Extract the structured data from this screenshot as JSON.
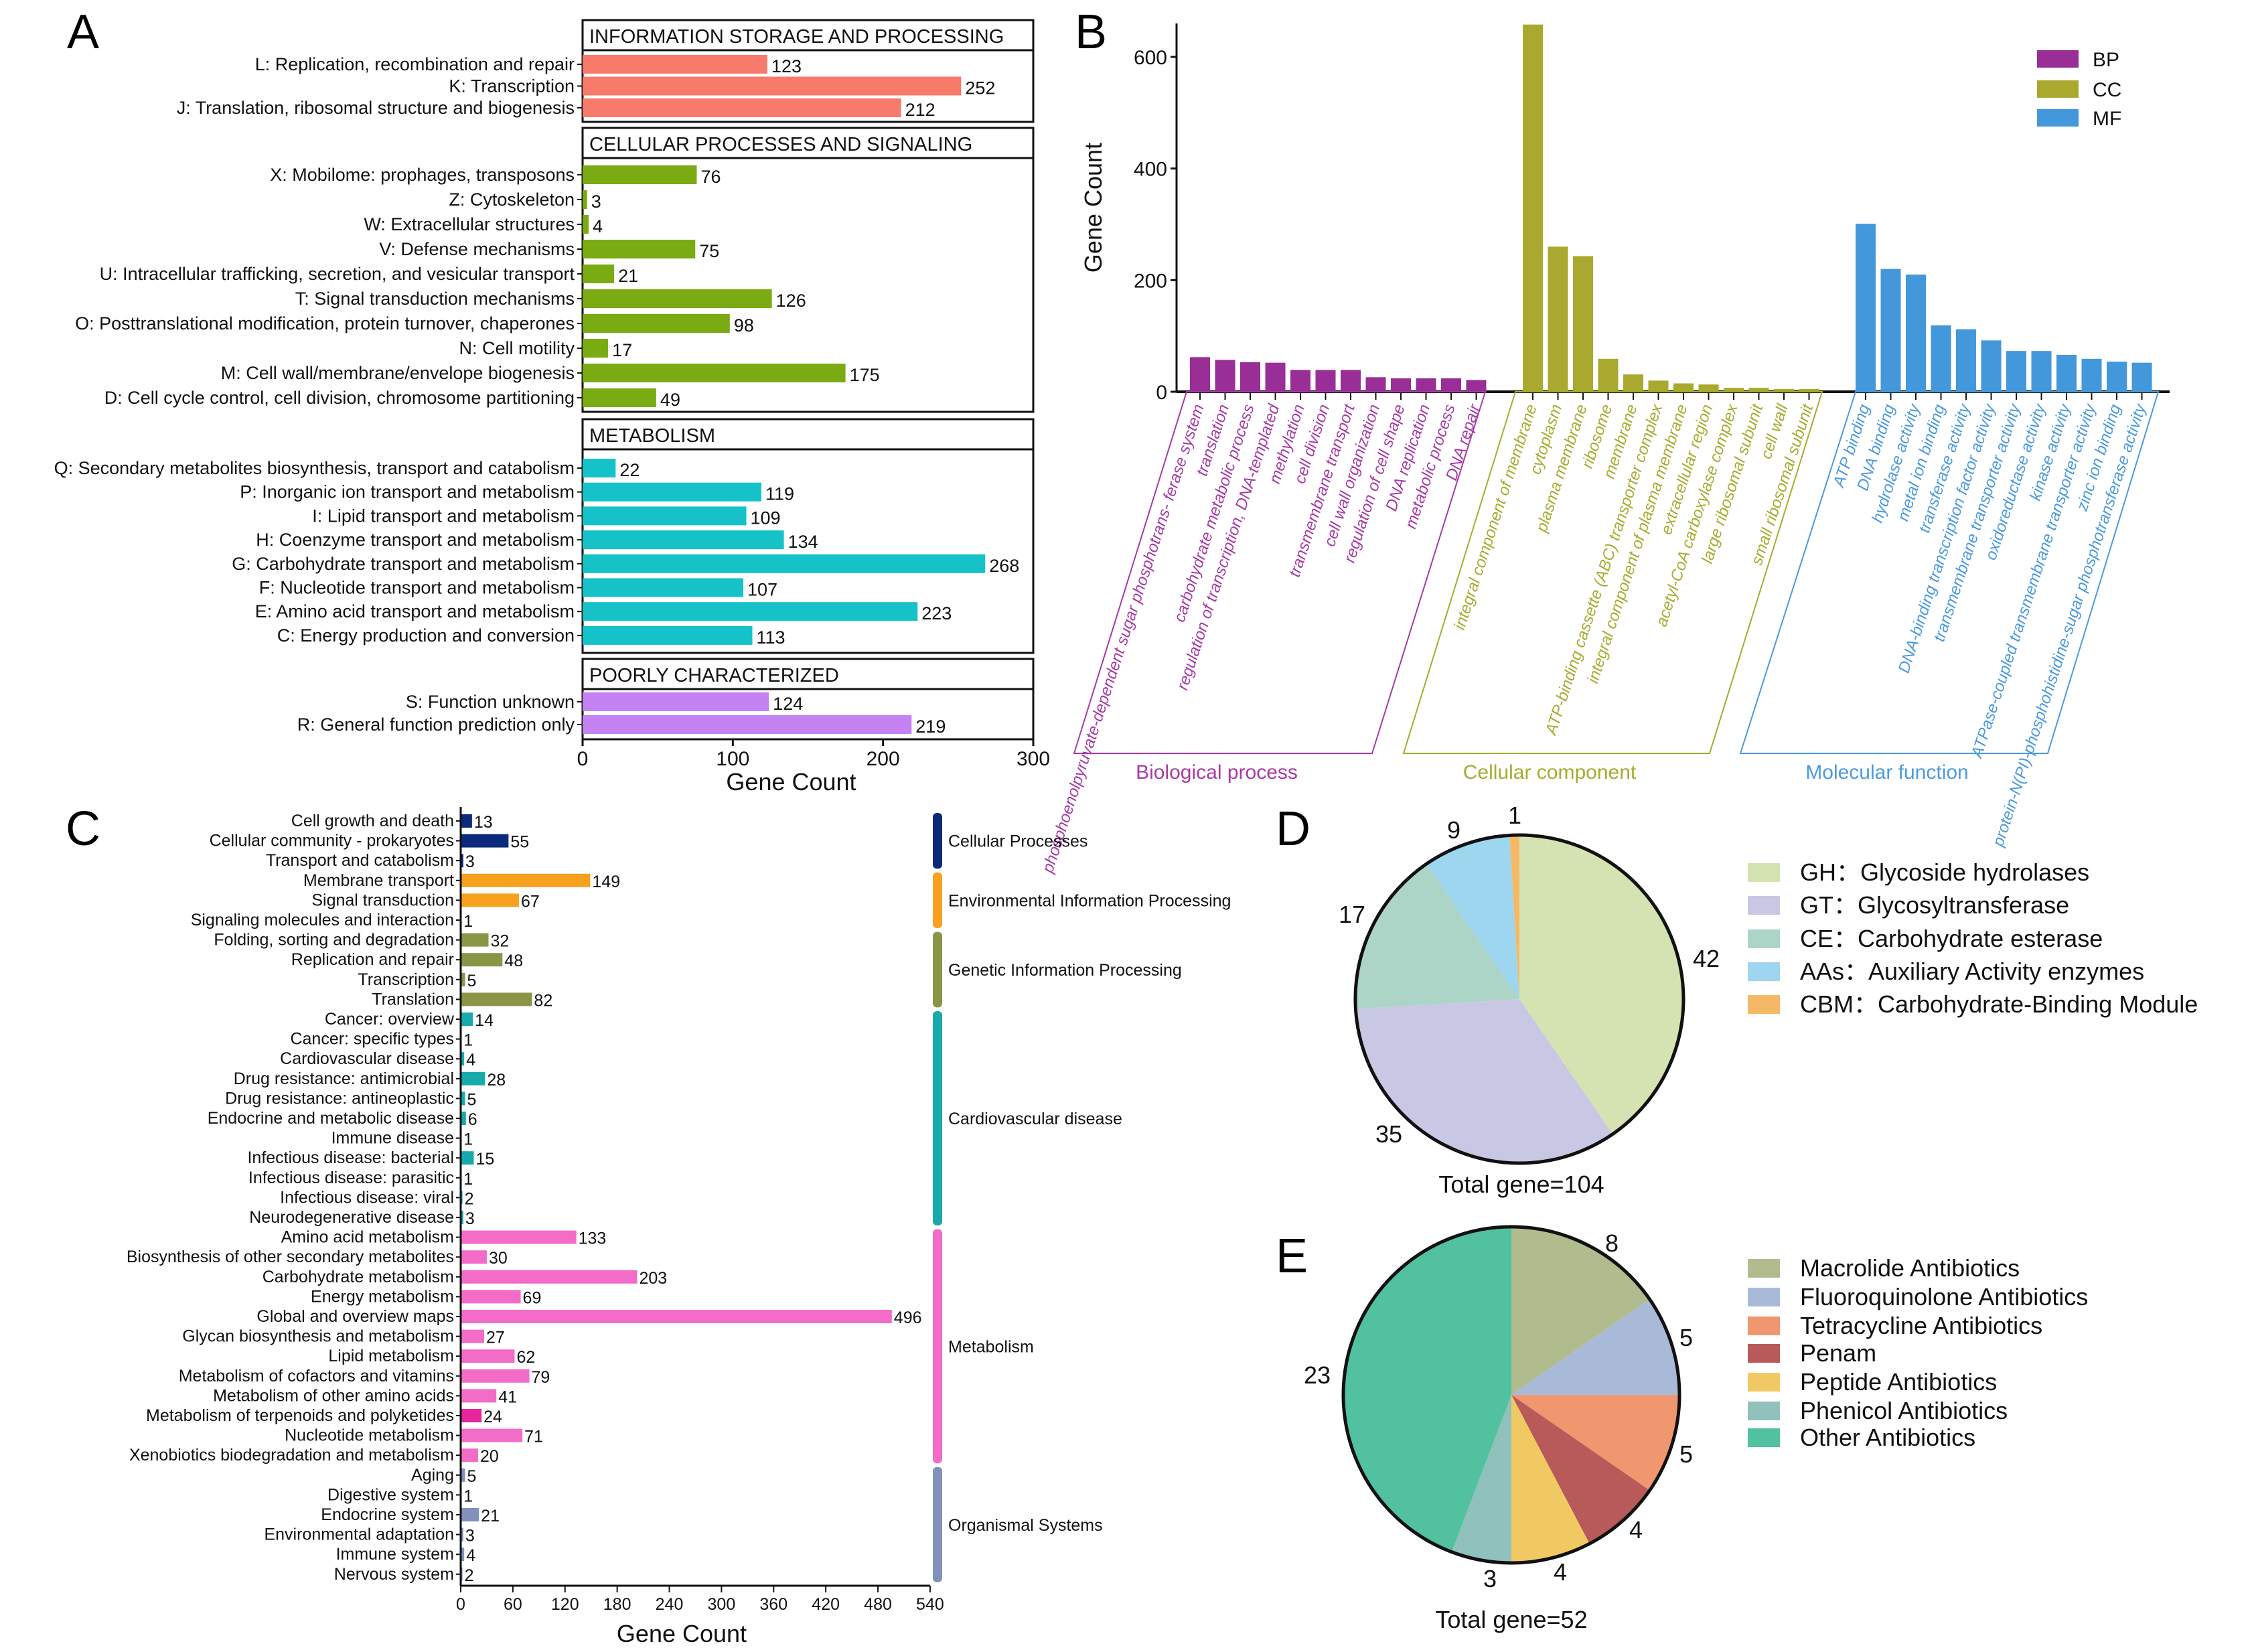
{
  "panels": {
    "a": "A",
    "b": "B",
    "c": "C",
    "d": "D",
    "e": "E"
  },
  "chart_data": [
    {
      "panel": "A",
      "type": "bar",
      "orientation": "horizontal",
      "xlabel": "Gene Count",
      "xlim": [
        0,
        300
      ],
      "xticks": [
        "0",
        "100",
        "200",
        "300"
      ],
      "groups": [
        {
          "name": "INFORMATION STORAGE AND PROCESSING",
          "color": "#f87a6a",
          "items": [
            {
              "label": "L: Replication, recombination and repair",
              "value": 123
            },
            {
              "label": "K: Transcription",
              "value": 252
            },
            {
              "label": "J: Translation, ribosomal structure and biogenesis",
              "value": 212
            }
          ]
        },
        {
          "name": "CELLULAR PROCESSES AND SIGNALING",
          "color": "#7aab12",
          "items": [
            {
              "label": "X: Mobilome: prophages, transposons",
              "value": 76
            },
            {
              "label": "Z: Cytoskeleton",
              "value": 3
            },
            {
              "label": "W: Extracellular structures",
              "value": 4
            },
            {
              "label": "V: Defense mechanisms",
              "value": 75
            },
            {
              "label": "U: Intracellular trafficking, secretion, and vesicular transport",
              "value": 21
            },
            {
              "label": "T: Signal transduction mechanisms",
              "value": 126
            },
            {
              "label": "O: Posttranslational modification, protein turnover, chaperones",
              "value": 98
            },
            {
              "label": "N: Cell motility",
              "value": 17
            },
            {
              "label": "M: Cell wall/membrane/envelope biogenesis",
              "value": 175
            },
            {
              "label": "D: Cell cycle control, cell division, chromosome partitioning",
              "value": 49
            }
          ]
        },
        {
          "name": "METABOLISM",
          "color": "#14c2c8",
          "items": [
            {
              "label": "Q: Secondary metabolites biosynthesis, transport and catabolism",
              "value": 22
            },
            {
              "label": "P: Inorganic ion transport and metabolism",
              "value": 119
            },
            {
              "label": "I: Lipid transport and metabolism",
              "value": 109
            },
            {
              "label": "H: Coenzyme transport and metabolism",
              "value": 134
            },
            {
              "label": "G: Carbohydrate transport and metabolism",
              "value": 268
            },
            {
              "label": "F: Nucleotide transport and metabolism",
              "value": 107
            },
            {
              "label": "E: Amino acid transport and metabolism",
              "value": 223
            },
            {
              "label": "C: Energy production and conversion",
              "value": 113
            }
          ]
        },
        {
          "name": "POORLY CHARACTERIZED",
          "color": "#c482f2",
          "items": [
            {
              "label": "S: Function unknown",
              "value": 124
            },
            {
              "label": "R: General function prediction only",
              "value": 219
            }
          ]
        }
      ]
    },
    {
      "panel": "B",
      "type": "bar",
      "ylabel": "Gene Count",
      "ylim": [
        0,
        660
      ],
      "yticks": [
        "0",
        "200",
        "400",
        "600"
      ],
      "legend_position": "top-right",
      "series": [
        {
          "name": "BP",
          "group_label": "Biological process",
          "color": "#982e96",
          "label_color": "#a83aa6",
          "categories": [
            "phosphoenolpyruvate-dependent sugar phosphotrans- ferase system",
            "translation",
            "carbohydrate metabolic process",
            "regulation of transcription, DNA-templated",
            "methylation",
            "cell division",
            "transmembrane transport",
            "cell wall organization",
            "regulation of cell shape",
            "DNA replication",
            "metabolic process",
            "DNA repair"
          ],
          "values": [
            62,
            57,
            53,
            52,
            39,
            39,
            39,
            26,
            24,
            24,
            24,
            21
          ]
        },
        {
          "name": "CC",
          "group_label": "Cellular component",
          "color": "#a9a930",
          "label_color": "#a4ad2e",
          "categories": [
            "integral component of membrane",
            "cytoplasm",
            "plasma membrane",
            "ribosome",
            "membrane",
            "ATP-binding cassette (ABC) transporter complex",
            "integral component of plasma membrane",
            "extracellular region",
            "acetyl-CoA carboxylase complex",
            "large ribosomal subunit",
            "cell wall",
            "small ribosomal subunit"
          ],
          "values": [
            658,
            260,
            243,
            59,
            31,
            20,
            15,
            13,
            7,
            7,
            5,
            5
          ]
        },
        {
          "name": "MF",
          "group_label": "Molecular function",
          "color": "#4398dc",
          "label_color": "#4a9ae0",
          "categories": [
            "ATP binding",
            "DNA binding",
            "hydrolase activity",
            "metal ion binding",
            "transferase activity",
            "DNA-binding transcription factor activity",
            "transmembrane transporter activity",
            "oxidoreductase activity",
            "kinase activity",
            "ATPase-coupled transmembrane transporter activity",
            "zinc ion binding",
            "protein-N(PI)-phosphohistidine-sugar phosphotransferase activity"
          ],
          "values": [
            301,
            220,
            210,
            119,
            112,
            92,
            73,
            73,
            66,
            59,
            54,
            52
          ]
        }
      ]
    },
    {
      "panel": "C",
      "type": "bar",
      "orientation": "horizontal",
      "xlabel": "Gene Count",
      "xlim": [
        0,
        540
      ],
      "xticks": [
        "0",
        "60",
        "120",
        "180",
        "240",
        "300",
        "360",
        "420",
        "480",
        "540"
      ],
      "groups": [
        {
          "name": "Cellular Processes",
          "color": "#0c2a7c",
          "items": [
            {
              "label": "Cell growth and death",
              "value": 13
            },
            {
              "label": "Cellular community - prokaryotes",
              "value": 55
            },
            {
              "label": "Transport and catabolism",
              "value": 3
            }
          ]
        },
        {
          "name": "Environmental Information Processing",
          "color": "#f7a11f",
          "items": [
            {
              "label": "Membrane transport",
              "value": 149
            },
            {
              "label": "Signal transduction",
              "value": 67
            },
            {
              "label": "Signaling molecules and interaction",
              "value": 1
            }
          ]
        },
        {
          "name": "Genetic Information Processing",
          "color": "#8a9646",
          "items": [
            {
              "label": "Folding, sorting and degradation",
              "value": 32
            },
            {
              "label": "Replication and repair",
              "value": 48
            },
            {
              "label": "Transcription",
              "value": 5
            },
            {
              "label": "Translation",
              "value": 82
            }
          ]
        },
        {
          "name": "Cardiovascular disease",
          "color": "#17aaab",
          "items": [
            {
              "label": "Cancer: overview",
              "value": 14
            },
            {
              "label": "Cancer: specific types",
              "value": 1
            },
            {
              "label": "Cardiovascular disease",
              "value": 4
            },
            {
              "label": "Drug resistance: antimicrobial",
              "value": 28
            },
            {
              "label": "Drug resistance: antineoplastic",
              "value": 5
            },
            {
              "label": "Endocrine and metabolic disease",
              "value": 6
            },
            {
              "label": "Immune disease",
              "value": 1
            },
            {
              "label": "Infectious disease: bacterial",
              "value": 15
            },
            {
              "label": "Infectious disease: parasitic",
              "value": 1
            },
            {
              "label": "Infectious disease: viral",
              "value": 2
            },
            {
              "label": "Neurodegenerative disease",
              "value": 3
            }
          ]
        },
        {
          "name": "Metabolism",
          "color": "#f26cc8",
          "items": [
            {
              "label": "Amino acid metabolism",
              "value": 133
            },
            {
              "label": "Biosynthesis of other secondary metabolites",
              "value": 30
            },
            {
              "label": "Carbohydrate metabolism",
              "value": 203
            },
            {
              "label": "Energy metabolism",
              "value": 69
            },
            {
              "label": "Global and overview maps",
              "value": 496
            },
            {
              "label": "Glycan biosynthesis and metabolism",
              "value": 27
            },
            {
              "label": "Lipid metabolism",
              "value": 62
            },
            {
              "label": "Metabolism of cofactors and vitamins",
              "value": 79
            },
            {
              "label": "Metabolism of other amino acids",
              "value": 41
            },
            {
              "label": "Metabolism of terpenoids and polyketides",
              "value": 24,
              "color": "#e6259e"
            },
            {
              "label": "Nucleotide metabolism",
              "value": 71
            },
            {
              "label": "Xenobiotics biodegradation and metabolism",
              "value": 20
            }
          ]
        },
        {
          "name": "Organismal Systems",
          "color": "#8291ba",
          "items": [
            {
              "label": "Aging",
              "value": 5
            },
            {
              "label": "Digestive system",
              "value": 1
            },
            {
              "label": "Endocrine system",
              "value": 21
            },
            {
              "label": "Environmental adaptation",
              "value": 3
            },
            {
              "label": "Immune system",
              "value": 4
            },
            {
              "label": "Nervous system",
              "value": 2
            }
          ]
        }
      ]
    },
    {
      "panel": "D",
      "type": "pie",
      "total_label": "Total gene=104",
      "legend_position": "right",
      "slices": [
        {
          "label": "GH：Glycoside hydrolases",
          "value": 42,
          "color": "#d5e2b1"
        },
        {
          "label": "GT：Glycosyltransferase",
          "value": 35,
          "color": "#c8c8e4"
        },
        {
          "label": "CE：Carbohydrate esterase",
          "value": 17,
          "color": "#acd4c7"
        },
        {
          "label": "AAs：Auxiliary Activity enzymes",
          "value": 9,
          "color": "#9dd6ee"
        },
        {
          "label": "CBM：Carbohydrate-Binding Module",
          "value": 1,
          "color": "#f5b865"
        }
      ]
    },
    {
      "panel": "E",
      "type": "pie",
      "total_label": "Total gene=52",
      "legend_position": "right",
      "slices": [
        {
          "label": "Macrolide Antibiotics",
          "value": 8,
          "color": "#b1bc8e"
        },
        {
          "label": "Fluoroquinolone Antibiotics",
          "value": 5,
          "color": "#a9bad8"
        },
        {
          "label": "Tetracycline Antibiotics",
          "value": 5,
          "color": "#f0976f"
        },
        {
          "label": "Penam",
          "value": 4,
          "color": "#b85a5a"
        },
        {
          "label": "Peptide Antibiotics",
          "value": 4,
          "color": "#f1c963"
        },
        {
          "label": "Phenicol Antibiotics",
          "value": 3,
          "color": "#91c1bd"
        },
        {
          "label": "Other Antibiotics",
          "value": 23,
          "color": "#52c19f"
        }
      ]
    }
  ]
}
